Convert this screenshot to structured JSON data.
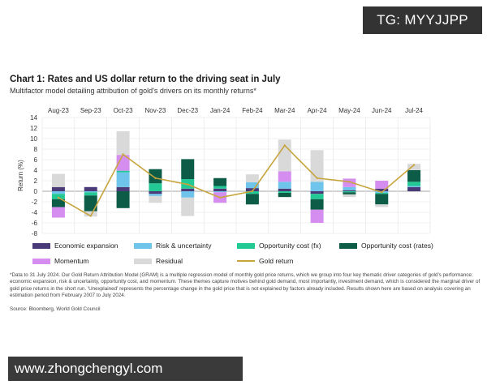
{
  "watermarks": {
    "top": "TG: MYYJJPP",
    "bottom": "www.zhongchengyl.com"
  },
  "title": "Chart 1: Rates and US dollar return to the driving seat in July",
  "subtitle": "Multifactor model detailing attribution of gold's drivers on its monthly returns*",
  "colors": {
    "Economic expansion": "#4a3b78",
    "Risk & uncertainty": "#6ec4ea",
    "Opportunity cost (fx)": "#22c995",
    "Opportunity cost (rates)": "#0d5c48",
    "Momentum": "#d58ef0",
    "Residual": "#d9d9d9",
    "Gold return": "#c7a43e"
  },
  "chart_data": {
    "type": "bar",
    "stacked": true,
    "title": "Chart 1: Rates and US dollar return to the driving seat in July",
    "ylabel": "Return (%)",
    "xlabel": "",
    "ylim": [
      -8,
      14
    ],
    "yticks": [
      -8,
      -6,
      -4,
      -2,
      0,
      2,
      4,
      6,
      8,
      10,
      12,
      14
    ],
    "categories": [
      "Aug-23",
      "Sep-23",
      "Oct-23",
      "Nov-23",
      "Dec-23",
      "Jan-24",
      "Feb-24",
      "Mar-24",
      "Apr-24",
      "May-24",
      "Jun-24",
      "Jul-24"
    ],
    "series": [
      {
        "name": "Economic expansion",
        "values": [
          0.8,
          0.8,
          0.8,
          -0.5,
          0.5,
          0.5,
          0.6,
          0.5,
          -0.5,
          0.2,
          0.5,
          0.8
        ]
      },
      {
        "name": "Risk & uncertainty",
        "values": [
          -0.5,
          -0.2,
          2.8,
          -0.4,
          -1.2,
          -0.2,
          1.1,
          1.3,
          1.8,
          0.6,
          -0.3,
          0.2
        ]
      },
      {
        "name": "Opportunity cost (fx)",
        "values": [
          -1.0,
          -0.6,
          0.3,
          1.5,
          1.8,
          0.5,
          -0.5,
          -0.3,
          -1.0,
          -0.2,
          -0.2,
          0.8
        ]
      },
      {
        "name": "Opportunity cost (rates)",
        "values": [
          -1.5,
          -3.0,
          -3.2,
          2.7,
          3.8,
          1.5,
          -2.0,
          -0.8,
          -2.0,
          -0.4,
          -2.0,
          2.2
        ]
      },
      {
        "name": "Momentum",
        "values": [
          -2.0,
          0,
          3.0,
          0,
          0,
          -2.0,
          0,
          2.0,
          -2.5,
          1.6,
          1.5,
          0
        ]
      },
      {
        "name": "Residual",
        "values": [
          2.5,
          -1.0,
          4.5,
          -1.3,
          -3.5,
          0,
          1.5,
          6.0,
          6.0,
          -0.5,
          -0.5,
          1.2
        ]
      }
    ],
    "line": {
      "name": "Gold return",
      "values": [
        -1.2,
        -4.7,
        7.0,
        2.5,
        1.3,
        -1.2,
        0.0,
        8.7,
        2.5,
        1.8,
        -0.2,
        5.0
      ]
    },
    "legend_position": "bottom",
    "grid": true
  },
  "footnote": "*Data to 31 July 2024. Our Gold Return Attribution Model (GRAM) is a multiple regression model of monthly gold price returns, which we group into four key thematic driver categories of gold's performance: economic expansion, risk & uncertainty, opportunity cost, and momentum. These themes capture motives behind gold demand, most importantly, investment demand, which is considered the marginal driver of gold price returns in the short run. 'Unexplained' represents the percentage change in the gold price that is not explained by factors already included. Results shown here are based on analysis covering an estimation period from February 2007 to July 2024.",
  "source": "Source: Bloomberg, World Gold Council"
}
